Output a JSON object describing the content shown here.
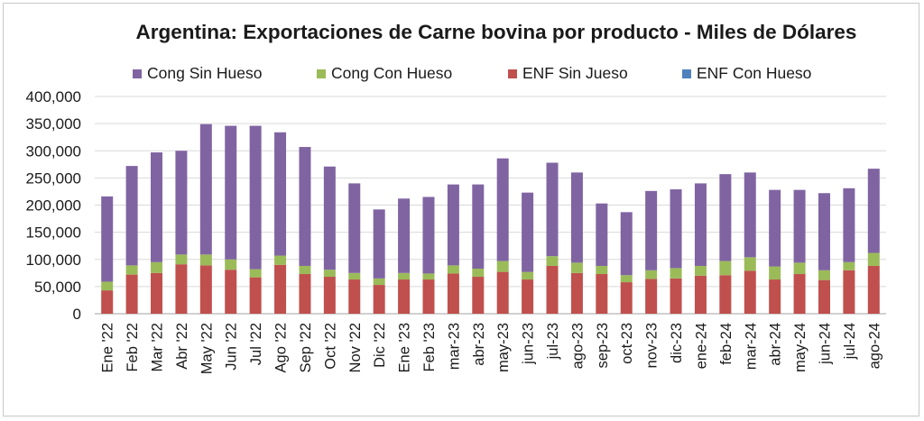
{
  "chart_data": {
    "type": "bar",
    "stacked": true,
    "title": "Argentina: Exportaciones de Carne bovina por producto - Miles de Dólares",
    "xlabel": "",
    "ylabel": "",
    "ylim": [
      0,
      400000
    ],
    "yticks": [
      "0",
      "50,000",
      "100,000",
      "150,000",
      "200,000",
      "250,000",
      "300,000",
      "350,000",
      "400,000"
    ],
    "grid": true,
    "legend_position": "top",
    "categories": [
      "Ene '22",
      "Feb '22",
      "Mar '22",
      "Abr '22",
      "May '22",
      "Jun '22",
      "Jul '22",
      "Ago '22",
      "Sep '22",
      "Oct '22",
      "Nov '22",
      "Dic '22",
      "Ene '23",
      "Feb '23",
      "mar-23",
      "abr-23",
      "may-23",
      "jun-23",
      "jul-23",
      "ago-23",
      "sep-23",
      "oct-23",
      "nov-23",
      "dic-23",
      "ene-24",
      "feb-24",
      "mar-24",
      "abr-24",
      "may-24",
      "jun-24",
      "jul-24",
      "ago-24"
    ],
    "series": [
      {
        "name": "ENF Con Hueso",
        "color": "#4f81bd",
        "values": [
          0,
          0,
          0,
          0,
          0,
          0,
          0,
          0,
          0,
          0,
          0,
          0,
          0,
          0,
          0,
          0,
          0,
          0,
          0,
          0,
          0,
          0,
          0,
          0,
          0,
          0,
          0,
          0,
          0,
          0,
          0,
          0
        ]
      },
      {
        "name": "ENF Sin Jueso",
        "color": "#c0504d",
        "values": [
          43000,
          72000,
          75000,
          91000,
          89000,
          81000,
          67000,
          90000,
          73000,
          68000,
          63000,
          53000,
          63000,
          63000,
          74000,
          68000,
          77000,
          63000,
          88000,
          75000,
          73000,
          58000,
          64000,
          65000,
          70000,
          71000,
          79000,
          63000,
          73000,
          62000,
          80000,
          88000
        ]
      },
      {
        "name": "Cong Con Hueso",
        "color": "#9bbb59",
        "values": [
          16000,
          17000,
          20000,
          18000,
          20000,
          19000,
          15000,
          17000,
          15000,
          13000,
          12000,
          12000,
          12000,
          11000,
          15000,
          15000,
          20000,
          14000,
          18000,
          19000,
          15000,
          13000,
          16000,
          19000,
          18000,
          26000,
          25000,
          24000,
          21000,
          18000,
          15000,
          24000
        ]
      },
      {
        "name": "Cong Sin Hueso",
        "color": "#8064a2",
        "values": [
          157000,
          183000,
          202000,
          191000,
          240000,
          246000,
          264000,
          227000,
          219000,
          190000,
          165000,
          127000,
          137000,
          141000,
          149000,
          155000,
          189000,
          146000,
          172000,
          166000,
          115000,
          116000,
          146000,
          145000,
          152000,
          160000,
          156000,
          141000,
          134000,
          142000,
          136000,
          155000
        ]
      }
    ]
  }
}
